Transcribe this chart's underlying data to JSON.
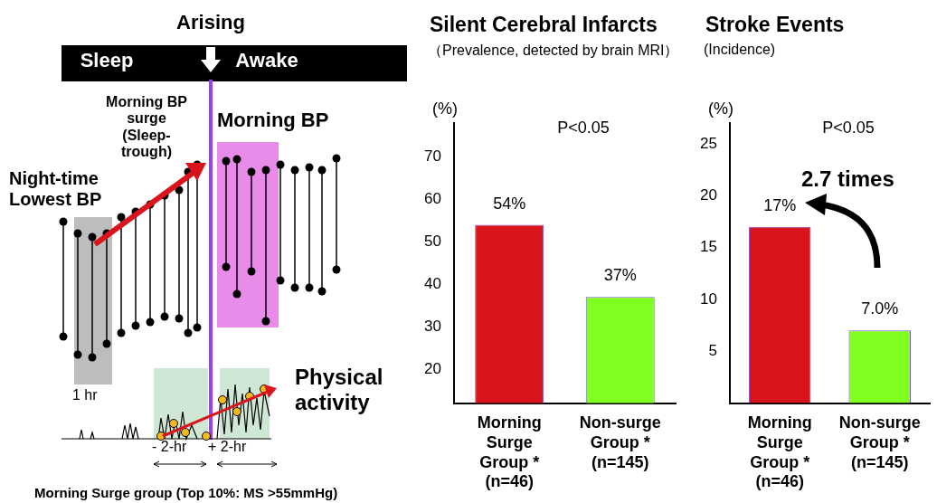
{
  "chart_data": [
    {
      "type": "other",
      "title": "Arising",
      "annotations": [
        "Sleep",
        "Awake",
        "Morning BP surge (Sleep-trough)",
        "Morning BP",
        "Night-time Lowest BP",
        "1 hr",
        "Physical activity",
        "- 2-hr",
        "+ 2-hr",
        "Morning Surge group (Top 10%: MS >55mmHg)"
      ]
    },
    {
      "type": "bar",
      "title": "Silent Cerebral Infarcts",
      "subtitle": "（Prevalence, detected by brain MRI）",
      "ylabel": "(%)",
      "categories": [
        "Morning Surge Group * (n=46)",
        "Non-surge Group * (n=145)"
      ],
      "values": [
        54,
        37
      ],
      "colors": [
        "#d9141c",
        "#80ff20"
      ],
      "value_labels": [
        "54%",
        "37%"
      ],
      "ylim": [
        12,
        78
      ],
      "yticks": [
        20,
        30,
        40,
        50,
        60,
        70
      ],
      "grid": false,
      "legend": false,
      "annotations": [
        "P<0.05"
      ]
    },
    {
      "type": "bar",
      "title": "Stroke Events",
      "subtitle": "(Incidence)",
      "ylabel": "(%)",
      "categories": [
        "Morning Surge Group * (n=46)",
        "Non-surge Group * (n=145)"
      ],
      "values": [
        17,
        7.0
      ],
      "colors": [
        "#d9141c",
        "#80ff20"
      ],
      "value_labels": [
        "17%",
        "7.0%"
      ],
      "ylim": [
        0,
        27
      ],
      "yticks": [
        5,
        10,
        15,
        20,
        25
      ],
      "grid": false,
      "legend": false,
      "annotations": [
        "P<0.05",
        "2.7 times"
      ]
    }
  ]
}
